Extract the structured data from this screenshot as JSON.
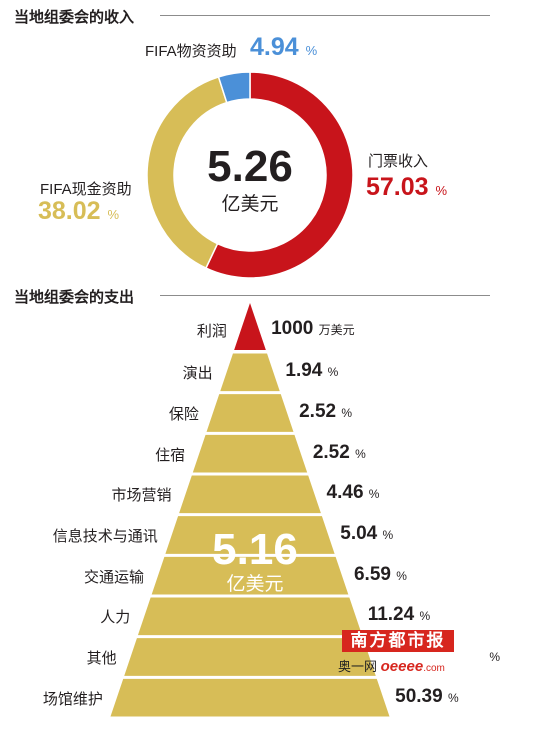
{
  "colors": {
    "gold": "#d7bd57",
    "red": "#c8141b",
    "blue": "#4b90d8",
    "dark": "#231f20",
    "rule": "#8c8c8c"
  },
  "chart_data": [
    {
      "type": "pie",
      "variant": "donut",
      "title": "当地组委会的收入",
      "center_value": "5.26",
      "center_unit": "亿美元",
      "slices": [
        {
          "label": "门票收入",
          "value": 57.03,
          "display": "57.03",
          "color": "#c8141b"
        },
        {
          "label": "FIFA现金资助",
          "value": 38.02,
          "display": "38.02",
          "color": "#d7bd57"
        },
        {
          "label": "FIFA物资资助",
          "value": 4.94,
          "display": "4.94",
          "color": "#4b90d8"
        }
      ],
      "unit": "%"
    },
    {
      "type": "bar",
      "variant": "stacked-pyramid",
      "title": "当地组委会的支出",
      "center_value": "5.16",
      "center_unit": "亿美元",
      "categories": [
        "利润",
        "演出",
        "保险",
        "住宿",
        "市场营销",
        "信息技术与通讯",
        "交通运输",
        "人力",
        "其他",
        "场馆维护"
      ],
      "values": [
        null,
        1.94,
        2.52,
        2.52,
        4.46,
        5.04,
        6.59,
        11.24,
        null,
        50.39
      ],
      "value_labels": [
        "1000",
        "1.94",
        "2.52",
        "2.52",
        "4.46",
        "5.04",
        "6.59",
        "11.24",
        "",
        "50.39"
      ],
      "value_units": [
        "万美元",
        "%",
        "%",
        "%",
        "%",
        "%",
        "%",
        "%",
        "%",
        "%"
      ],
      "top_color": "#c8141b",
      "layer_color": "#d7bd57"
    }
  ],
  "watermark": {
    "brand": "南方都市报",
    "line2": "奥一网",
    "site": "oeeee",
    "domain_suffix": ".com"
  }
}
